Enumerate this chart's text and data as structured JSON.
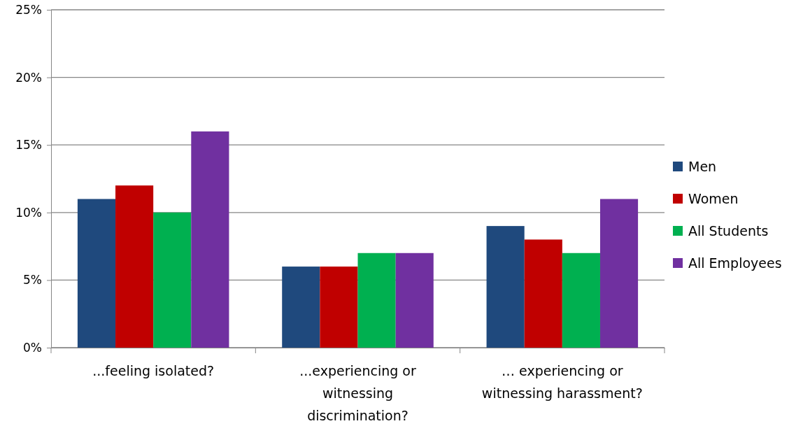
{
  "chart_data": {
    "type": "bar",
    "categories": [
      "...feeling isolated?",
      "...experiencing or witnessing discrimination?",
      "… experiencing or witnessing harassment?"
    ],
    "series": [
      {
        "name": "Men",
        "color": "#1f497d",
        "values": [
          11,
          6,
          9
        ]
      },
      {
        "name": "Women",
        "color": "#c00000",
        "values": [
          12,
          6,
          8
        ]
      },
      {
        "name": "All Students",
        "color": "#00b050",
        "values": [
          10,
          7,
          7
        ]
      },
      {
        "name": "All Employees",
        "color": "#7030a0",
        "values": [
          16,
          7,
          11
        ]
      }
    ],
    "ylim": [
      0,
      25
    ],
    "yticks": [
      {
        "value": 0,
        "label": "0%"
      },
      {
        "value": 5,
        "label": "5%"
      },
      {
        "value": 10,
        "label": "10%"
      },
      {
        "value": 15,
        "label": "15%"
      },
      {
        "value": 20,
        "label": "20%"
      },
      {
        "value": 25,
        "label": "25%"
      }
    ],
    "grid": "y",
    "legend": "right"
  }
}
